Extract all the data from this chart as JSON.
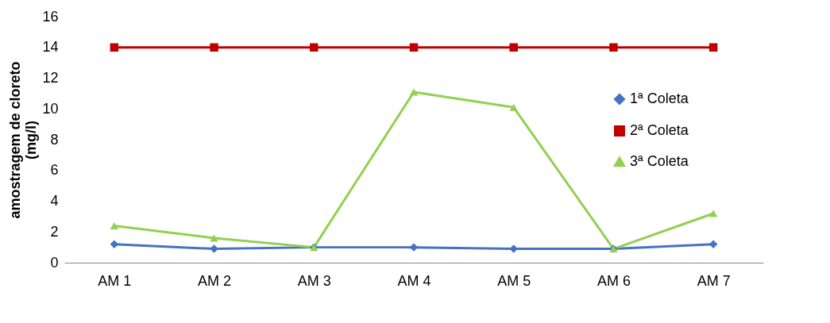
{
  "chart_data": {
    "type": "line",
    "ylabel": "amostragem de cloreto (mg/l)",
    "categories": [
      "AM 1",
      "AM 2",
      "AM 3",
      "AM 4",
      "AM 5",
      "AM 6",
      "AM 7"
    ],
    "series": [
      {
        "name": "1ª Coleta",
        "color": "#4472c4",
        "marker": "diamond",
        "values": [
          1.2,
          0.9,
          1.0,
          1.0,
          0.9,
          0.9,
          1.2
        ]
      },
      {
        "name": "2ª Coleta",
        "color": "#c00000",
        "marker": "square",
        "values": [
          14,
          14,
          14,
          14,
          14,
          14,
          14
        ]
      },
      {
        "name": "3ª Coleta",
        "color": "#92d050",
        "marker": "triangle",
        "values": [
          2.4,
          1.6,
          1.0,
          11.1,
          10.1,
          0.9,
          3.2
        ]
      }
    ],
    "ylim": [
      0,
      16
    ],
    "yticks": [
      0,
      2,
      4,
      6,
      8,
      10,
      12,
      14,
      16
    ],
    "grid": false,
    "legend": "right"
  }
}
